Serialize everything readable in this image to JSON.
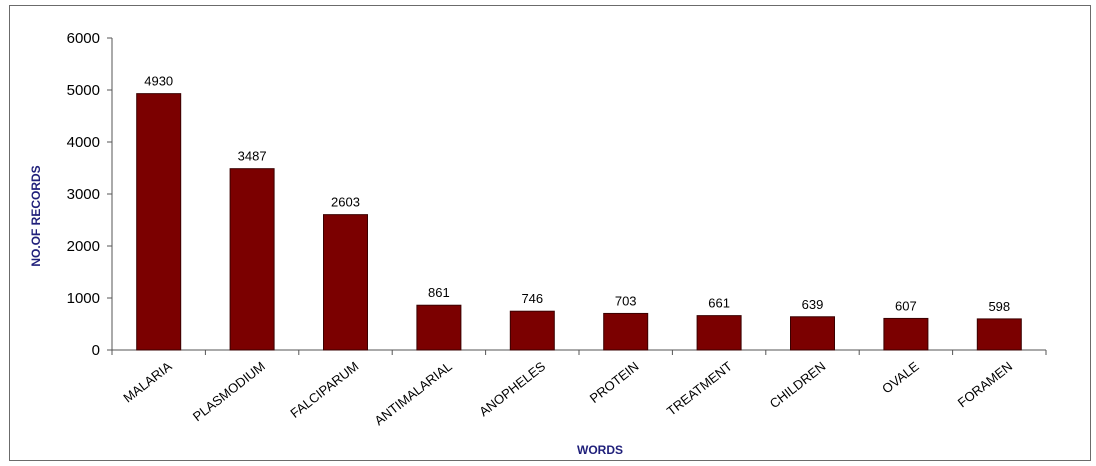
{
  "chart_data": {
    "type": "bar",
    "categories": [
      "MALARIA",
      "PLASMODIUM",
      "FALCIPARUM",
      "ANTIMALARIAL",
      "ANOPHELES",
      "PROTEIN",
      "TREATMENT",
      "CHILDREN",
      "OVALE",
      "FORAMEN"
    ],
    "values": [
      4930,
      3487,
      2603,
      861,
      746,
      703,
      661,
      639,
      607,
      598
    ],
    "data_labels": [
      "4930",
      "3487",
      "2603",
      "861",
      "746",
      "703",
      "661",
      "639",
      "607",
      "598"
    ],
    "title": "",
    "xlabel": "WORDS",
    "ylabel": "NO.OF RECORDS",
    "ylim": [
      0,
      6000
    ],
    "yticks": [
      0,
      1000,
      2000,
      3000,
      4000,
      5000,
      6000
    ],
    "grid": false,
    "legend": "none",
    "bar_color": "#7b0000",
    "axis_title_color": "#1f1f7a"
  }
}
